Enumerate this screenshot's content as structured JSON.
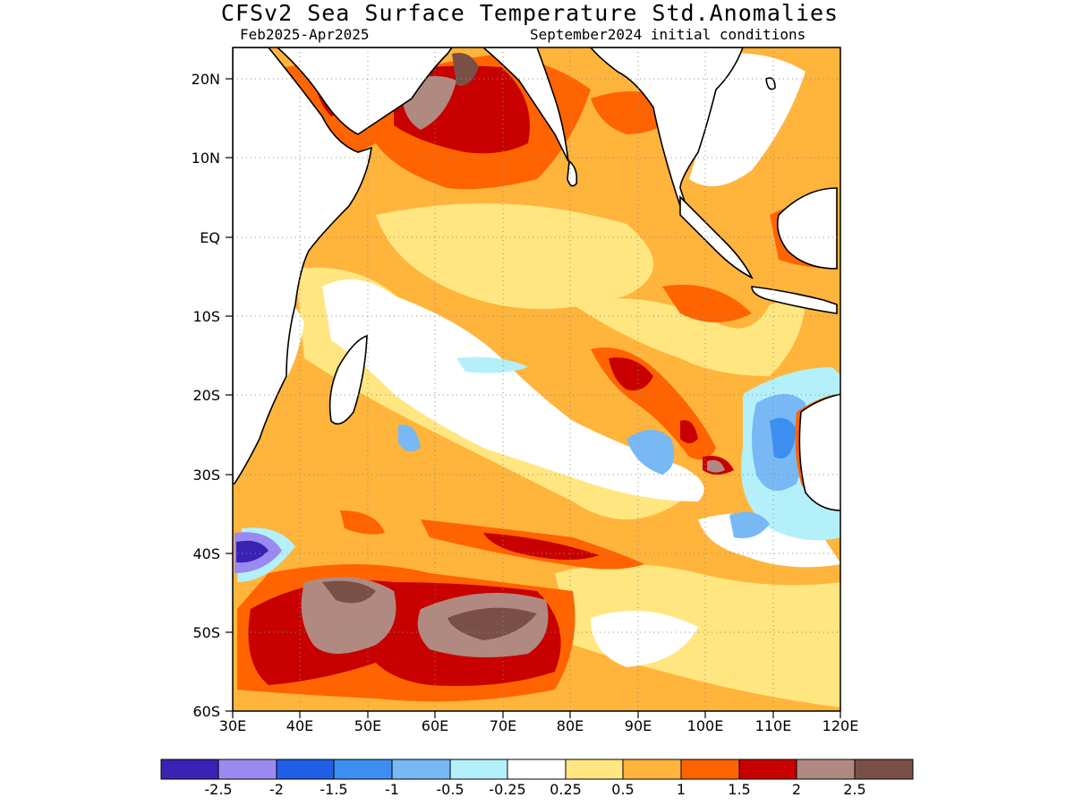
{
  "header": {
    "title": "CFSv2 Sea Surface Temperature Std.Anomalies",
    "period": "Feb2025-Apr2025",
    "initial_conditions": "September2024 initial conditions"
  },
  "axes": {
    "lat_labels": [
      "20N",
      "10N",
      "EQ",
      "10S",
      "20S",
      "30S",
      "40S",
      "50S",
      "60S"
    ],
    "lon_labels": [
      "30E",
      "40E",
      "50E",
      "60E",
      "70E",
      "80E",
      "90E",
      "100E",
      "110E",
      "120E"
    ]
  },
  "colorbar": {
    "colors": [
      "#3a22b4",
      "#9a8af0",
      "#1f5fe6",
      "#3c8ff0",
      "#78b8f5",
      "#b4f0fa",
      "#ffffff",
      "#ffe680",
      "#ffb43c",
      "#ff6400",
      "#c80000",
      "#b08a80",
      "#7a5046"
    ],
    "labels": [
      "-2.5",
      "-2",
      "-1.5",
      "-1",
      "-0.5",
      "-0.25",
      "0.25",
      "0.5",
      "1",
      "1.5",
      "2",
      "2.5"
    ]
  },
  "map": {
    "lon_range": [
      30,
      120
    ],
    "lat_range": [
      -60,
      24
    ],
    "grid": true,
    "grid_style": "dotted"
  }
}
